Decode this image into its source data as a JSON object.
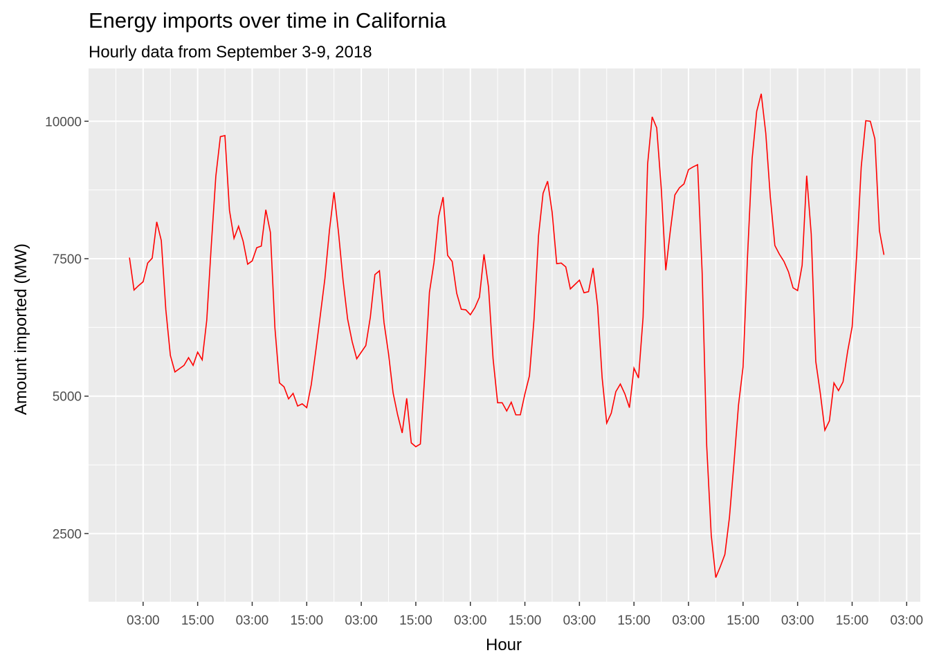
{
  "colors": {
    "panel": "#ebebeb",
    "grid": "#ffffff",
    "line": "#ff0000",
    "tick_text": "#4d4d4d"
  },
  "chart_data": {
    "type": "line",
    "title": "Energy imports over time in California",
    "subtitle": "Hourly data from September 3-9, 2018",
    "xlabel": "Hour",
    "ylabel": "Amount imported (MW)",
    "grid": true,
    "x_start": "2018-09-03 00:00",
    "x_step_hours": 1,
    "xlim": [
      "2018-09-02 15:00",
      "2018-09-10 06:00"
    ],
    "x_ticks": [
      {
        "label": "03:00",
        "datetime": "2018-09-03 03:00"
      },
      {
        "label": "15:00",
        "datetime": "2018-09-03 15:00"
      },
      {
        "label": "03:00",
        "datetime": "2018-09-04 03:00"
      },
      {
        "label": "15:00",
        "datetime": "2018-09-04 15:00"
      },
      {
        "label": "03:00",
        "datetime": "2018-09-05 03:00"
      },
      {
        "label": "15:00",
        "datetime": "2018-09-05 15:00"
      },
      {
        "label": "03:00",
        "datetime": "2018-09-06 03:00"
      },
      {
        "label": "15:00",
        "datetime": "2018-09-06 15:00"
      },
      {
        "label": "03:00",
        "datetime": "2018-09-07 03:00"
      },
      {
        "label": "15:00",
        "datetime": "2018-09-07 15:00"
      },
      {
        "label": "03:00",
        "datetime": "2018-09-08 03:00"
      },
      {
        "label": "15:00",
        "datetime": "2018-09-08 15:00"
      },
      {
        "label": "03:00",
        "datetime": "2018-09-09 03:00"
      },
      {
        "label": "15:00",
        "datetime": "2018-09-09 15:00"
      },
      {
        "label": "03:00",
        "datetime": "2018-09-10 03:00"
      }
    ],
    "ylim": [
      1260,
      10960
    ],
    "y_ticks": [
      2500,
      5000,
      7500,
      10000
    ],
    "series": [
      {
        "name": "",
        "values": [
          7520,
          6930,
          7010,
          7080,
          7420,
          7510,
          8170,
          7830,
          6570,
          5740,
          5440,
          5500,
          5560,
          5700,
          5560,
          5800,
          5660,
          6380,
          7740,
          9000,
          9720,
          9740,
          8380,
          7870,
          8090,
          7820,
          7400,
          7460,
          7700,
          7730,
          8390,
          7980,
          6240,
          5240,
          5170,
          4950,
          5050,
          4820,
          4860,
          4790,
          5210,
          5830,
          6480,
          7140,
          8020,
          8710,
          7970,
          7100,
          6400,
          5990,
          5680,
          5800,
          5920,
          6440,
          7210,
          7280,
          6340,
          5770,
          5060,
          4660,
          4330,
          4960,
          4150,
          4080,
          4130,
          5420,
          6890,
          7430,
          8260,
          8620,
          7560,
          7450,
          6870,
          6580,
          6570,
          6480,
          6610,
          6800,
          7580,
          6980,
          5680,
          4880,
          4880,
          4730,
          4890,
          4660,
          4660,
          5040,
          5370,
          6390,
          7920,
          8690,
          8910,
          8340,
          7410,
          7420,
          7350,
          6950,
          7030,
          7110,
          6880,
          6900,
          7330,
          6640,
          5330,
          4510,
          4690,
          5080,
          5220,
          5040,
          4790,
          5510,
          5330,
          6430,
          9220,
          10080,
          9880,
          8780,
          7290,
          8010,
          8660,
          8790,
          8860,
          9120,
          9170,
          9210,
          7250,
          4100,
          2470,
          1700,
          1900,
          2120,
          2790,
          3780,
          4840,
          5530,
          7570,
          9320,
          10180,
          10500,
          9780,
          8620,
          7740,
          7580,
          7450,
          7260,
          6970,
          6920,
          7380,
          9010,
          7950,
          5630,
          5050,
          4380,
          4550,
          5240,
          5100,
          5260,
          5810,
          6260,
          7570,
          9170,
          10010,
          10000,
          9680,
          8010,
          7570
        ]
      }
    ]
  }
}
